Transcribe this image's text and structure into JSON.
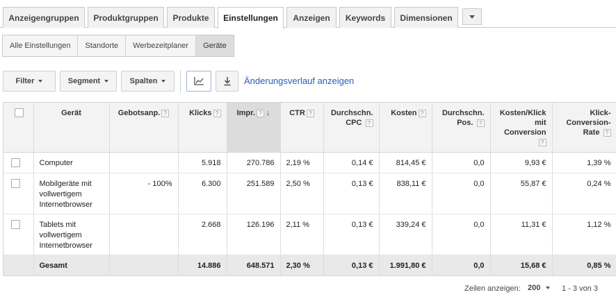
{
  "tabs": [
    {
      "label": "Anzeigengruppen",
      "active": false
    },
    {
      "label": "Produktgruppen",
      "active": false
    },
    {
      "label": "Produkte",
      "active": false
    },
    {
      "label": "Einstellungen",
      "active": true
    },
    {
      "label": "Anzeigen",
      "active": false
    },
    {
      "label": "Keywords",
      "active": false
    },
    {
      "label": "Dimensionen",
      "active": false
    }
  ],
  "subtabs": [
    {
      "label": "Alle Einstellungen",
      "active": false
    },
    {
      "label": "Standorte",
      "active": false
    },
    {
      "label": "Werbezeitplaner",
      "active": false
    },
    {
      "label": "Geräte",
      "active": true
    }
  ],
  "toolbar": {
    "filter_label": "Filter",
    "segment_label": "Segment",
    "columns_label": "Spalten",
    "history_link": "Änderungsverlauf anzeigen"
  },
  "table": {
    "headers": {
      "device": "Gerät",
      "bid_adj": "Gebotsanp.",
      "clicks": "Klicks",
      "impr": "Impr.",
      "ctr": "CTR",
      "avg_cpc": "Durchschn. CPC",
      "cost": "Kosten",
      "avg_pos": "Durchschn. Pos.",
      "cost_conv": "Kosten/Klick mit Conversion",
      "conv_rate": "Klick-Conversion-Rate"
    },
    "help_glyph": "?",
    "sort_glyph": "↓",
    "rows": [
      {
        "device": "Computer",
        "bid_adj": "",
        "clicks": "5.918",
        "impr": "270.786",
        "ctr": "2,19 %",
        "avg_cpc": "0,14 €",
        "cost": "814,45 €",
        "avg_pos": "0,0",
        "cost_conv": "9,93 €",
        "conv_rate": "1,39 %"
      },
      {
        "device": "Mobilgeräte mit vollwertigem Internetbrowser",
        "bid_adj": "- 100%",
        "clicks": "6.300",
        "impr": "251.589",
        "ctr": "2,50 %",
        "avg_cpc": "0,13 €",
        "cost": "838,11 €",
        "avg_pos": "0,0",
        "cost_conv": "55,87 €",
        "conv_rate": "0,24 %"
      },
      {
        "device": "Tablets mit vollwertigem Internetbrowser",
        "bid_adj": "",
        "clicks": "2.668",
        "impr": "126.196",
        "ctr": "2,11 %",
        "avg_cpc": "0,13 €",
        "cost": "339,24 €",
        "avg_pos": "0,0",
        "cost_conv": "11,31 €",
        "conv_rate": "1,12 %"
      }
    ],
    "total": {
      "device": "Gesamt",
      "bid_adj": "",
      "clicks": "14.886",
      "impr": "648.571",
      "ctr": "2,30 %",
      "avg_cpc": "0,13 €",
      "cost": "1.991,80 €",
      "avg_pos": "0,0",
      "cost_conv": "15,68 €",
      "conv_rate": "0,85 %"
    }
  },
  "footer": {
    "rows_label": "Zeilen anzeigen:",
    "rows_value": "200",
    "range": "1 - 3 von 3"
  }
}
